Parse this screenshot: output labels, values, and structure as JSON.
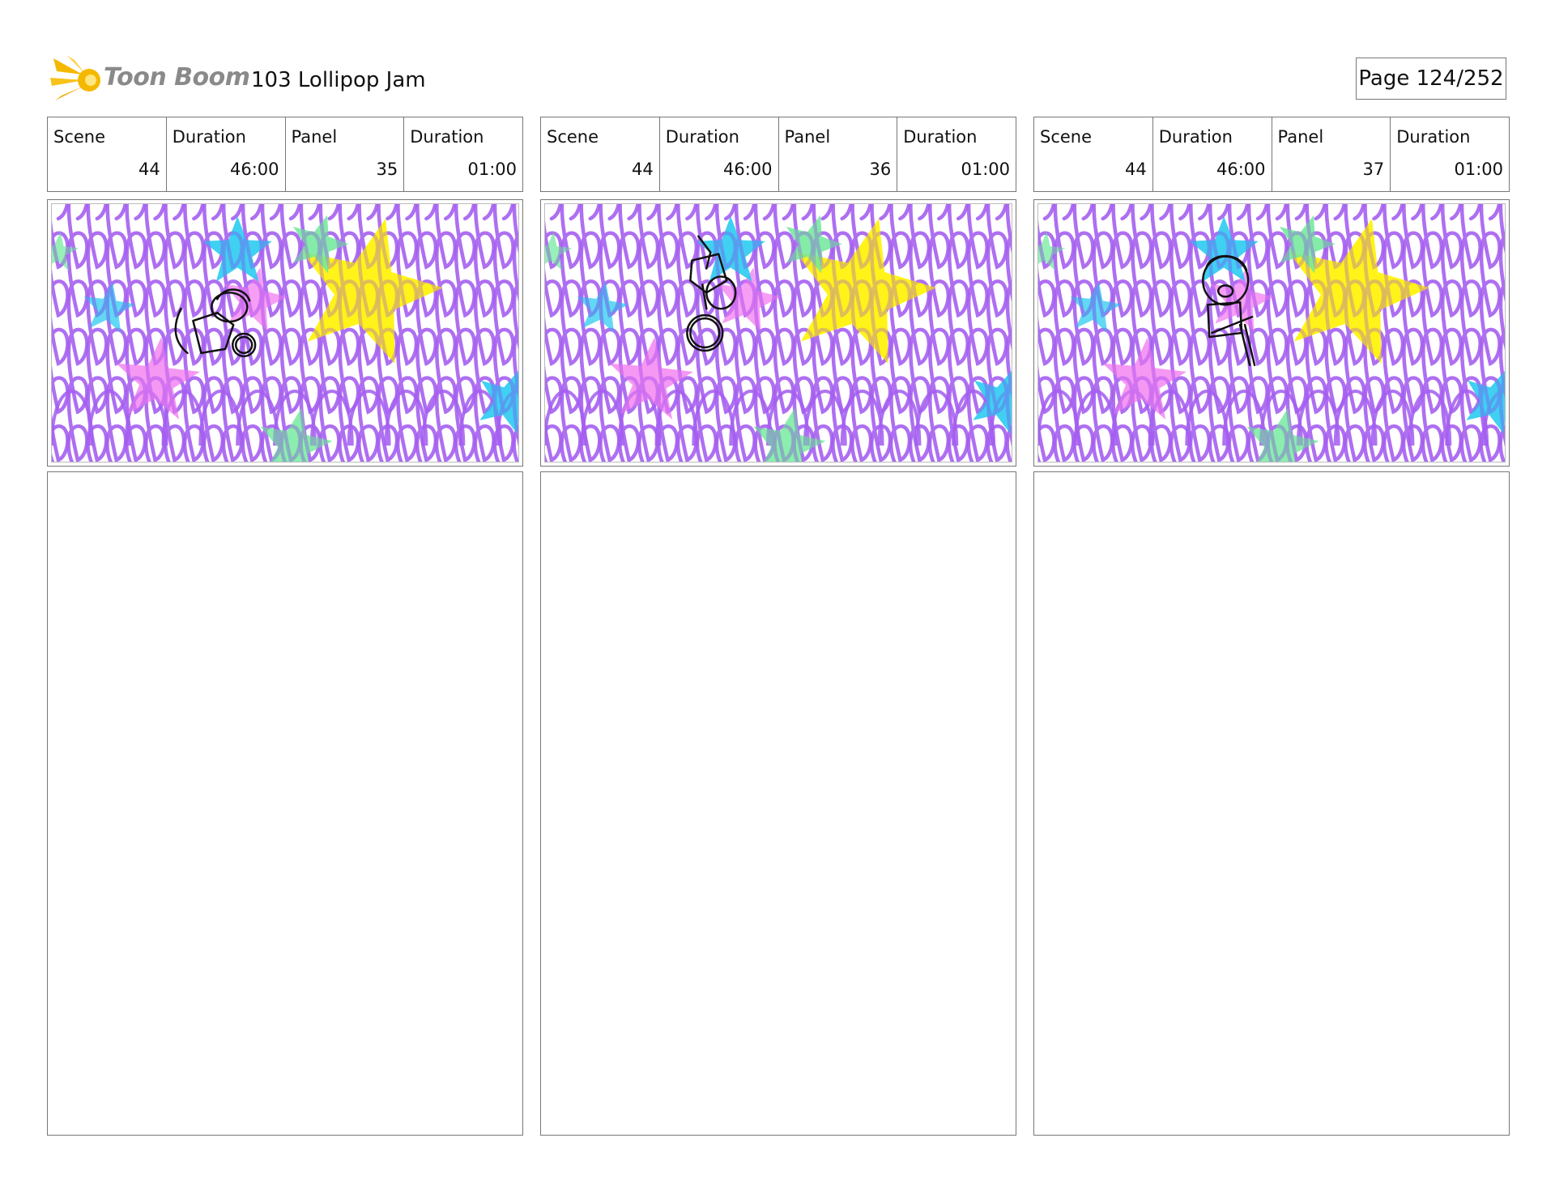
{
  "header": {
    "logo_text": "Toon Boom",
    "project_title": "103 Lollipop Jam",
    "page_label": "Page 124/252"
  },
  "colors": {
    "scribble_purple": "#a45ef0",
    "star_yellow": "#fff200",
    "star_pink": "#f27ef0",
    "star_cyan": "#1fc8f0",
    "star_green": "#6ee89a",
    "logo_orange": "#f5b800"
  },
  "panels": [
    {
      "scene_label": "Scene",
      "scene": "44",
      "scene_duration_label": "Duration",
      "scene_duration": "46:00",
      "panel_label": "Panel",
      "panel": "35",
      "panel_duration_label": "Duration",
      "panel_duration": "01:00",
      "character_pose": "leaning-with-ring"
    },
    {
      "scene_label": "Scene",
      "scene": "44",
      "scene_duration_label": "Duration",
      "scene_duration": "46:00",
      "panel_label": "Panel",
      "panel": "36",
      "panel_duration_label": "Duration",
      "panel_duration": "01:00",
      "character_pose": "upside-down-with-ring"
    },
    {
      "scene_label": "Scene",
      "scene": "44",
      "scene_duration_label": "Duration",
      "scene_duration": "46:00",
      "panel_label": "Panel",
      "panel": "37",
      "panel_duration_label": "Duration",
      "panel_duration": "01:00",
      "character_pose": "shouting-with-stick"
    }
  ]
}
